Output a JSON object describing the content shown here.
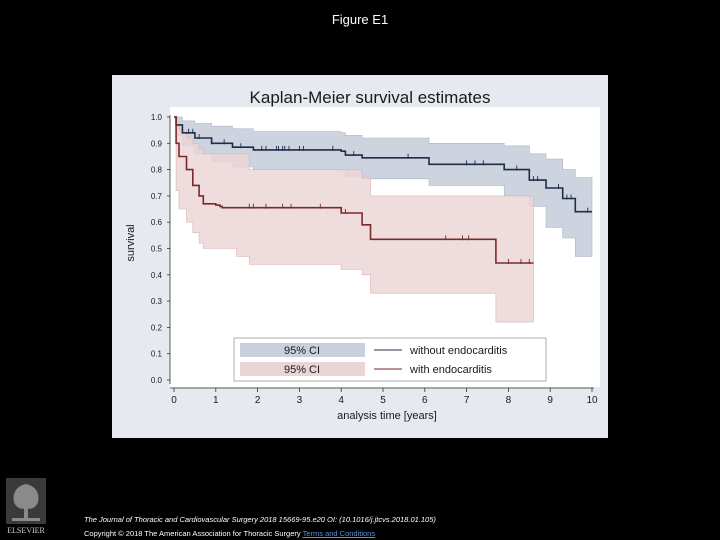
{
  "slide": {
    "title": "Figure E1"
  },
  "footer": {
    "publisher": "ELSEVIER",
    "citation_line1": "The Journal of Thoracic and Cardiovascular Surgery 2018 15669-95.e20 OI: (10.1016/j.jtcvs.2018.01.105)",
    "citation_line2_prefix": "Copyright © 2018 The American Association for Thoracic Surgery ",
    "terms_link": "Terms and Conditions"
  },
  "colors": {
    "background": "#000000",
    "panel": "#e6e9f0",
    "plot_area": "#ffffff",
    "without_line": "#1f2c4a",
    "without_ci": "#c9cfdc",
    "with_line": "#7a2a2a",
    "with_ci": "#ebd4d6"
  },
  "chart_data": {
    "type": "line",
    "title": "Kaplan-Meier survival estimates",
    "xlabel": "analysis time [years]",
    "ylabel": "survival",
    "xlim": [
      0,
      10
    ],
    "ylim": [
      0,
      1
    ],
    "x_ticks": [
      "0",
      "1",
      "2",
      "3",
      "4",
      "5",
      "6",
      "7",
      "8",
      "9",
      "10"
    ],
    "y_ticks": [
      "0.0",
      "0.1",
      "0.2",
      "0.3",
      "0.4",
      "0.5",
      "0.6",
      "0.7",
      "0.8",
      "0.9",
      "1.0"
    ],
    "grid": false,
    "legend_position": "bottom-center",
    "legend": {
      "ci_label_1": "95% CI",
      "line_label_1": "without endocarditis",
      "ci_label_2": "95% CI",
      "line_label_2": "with endocarditis"
    },
    "series": [
      {
        "name": "without endocarditis",
        "color": "#1f2c4a",
        "steps": [
          [
            0,
            1.0
          ],
          [
            0.05,
            0.97
          ],
          [
            0.2,
            0.94
          ],
          [
            0.5,
            0.92
          ],
          [
            0.9,
            0.9
          ],
          [
            1.4,
            0.885
          ],
          [
            1.9,
            0.875
          ],
          [
            4.0,
            0.87
          ],
          [
            4.1,
            0.855
          ],
          [
            4.5,
            0.845
          ],
          [
            6.1,
            0.82
          ],
          [
            7.9,
            0.8
          ],
          [
            8.5,
            0.76
          ],
          [
            8.9,
            0.73
          ],
          [
            9.3,
            0.69
          ],
          [
            9.6,
            0.64
          ],
          [
            10,
            0.64
          ]
        ],
        "ci_upper": [
          [
            0,
            1.0
          ],
          [
            0.05,
            1.0
          ],
          [
            0.2,
            0.985
          ],
          [
            0.5,
            0.975
          ],
          [
            0.9,
            0.965
          ],
          [
            1.4,
            0.955
          ],
          [
            1.9,
            0.945
          ],
          [
            4.0,
            0.94
          ],
          [
            4.1,
            0.93
          ],
          [
            4.5,
            0.92
          ],
          [
            5.0,
            0.92
          ],
          [
            6.1,
            0.9
          ],
          [
            7.9,
            0.89
          ],
          [
            8.5,
            0.86
          ],
          [
            8.9,
            0.84
          ],
          [
            9.3,
            0.8
          ],
          [
            9.6,
            0.77
          ],
          [
            10,
            0.77
          ]
        ],
        "ci_lower": [
          [
            0,
            1.0
          ],
          [
            0.05,
            0.93
          ],
          [
            0.2,
            0.89
          ],
          [
            0.5,
            0.86
          ],
          [
            0.9,
            0.83
          ],
          [
            1.4,
            0.81
          ],
          [
            1.9,
            0.8
          ],
          [
            4.0,
            0.795
          ],
          [
            4.1,
            0.775
          ],
          [
            4.5,
            0.765
          ],
          [
            6.1,
            0.74
          ],
          [
            7.9,
            0.7
          ],
          [
            8.5,
            0.66
          ],
          [
            8.9,
            0.58
          ],
          [
            9.3,
            0.54
          ],
          [
            9.6,
            0.47
          ],
          [
            10,
            0.47
          ]
        ],
        "censored": [
          0.35,
          0.45,
          0.6,
          0.9,
          1.2,
          1.6,
          2.1,
          2.2,
          2.45,
          2.5,
          2.6,
          2.65,
          2.75,
          3.0,
          3.1,
          3.8,
          4.3,
          5.6,
          7.0,
          7.2,
          7.4,
          8.2,
          8.6,
          8.7,
          9.2,
          9.4,
          9.5,
          9.9
        ]
      },
      {
        "name": "with endocarditis",
        "color": "#7a2a2a",
        "steps": [
          [
            0,
            1.0
          ],
          [
            0.05,
            0.9
          ],
          [
            0.12,
            0.85
          ],
          [
            0.3,
            0.8
          ],
          [
            0.45,
            0.74
          ],
          [
            0.6,
            0.7
          ],
          [
            0.7,
            0.67
          ],
          [
            1.0,
            0.665
          ],
          [
            1.1,
            0.66
          ],
          [
            1.15,
            0.655
          ],
          [
            1.5,
            0.655
          ],
          [
            1.7,
            0.655
          ],
          [
            4.0,
            0.635
          ],
          [
            4.5,
            0.59
          ],
          [
            4.7,
            0.535
          ],
          [
            7.7,
            0.445
          ],
          [
            8.6,
            0.445
          ]
        ],
        "ci_upper": [
          [
            0,
            1.0
          ],
          [
            0.05,
            0.98
          ],
          [
            0.12,
            0.95
          ],
          [
            0.3,
            0.92
          ],
          [
            0.45,
            0.9
          ],
          [
            0.6,
            0.88
          ],
          [
            0.7,
            0.86
          ],
          [
            1.5,
            0.86
          ],
          [
            1.8,
            0.8
          ],
          [
            4.0,
            0.8
          ],
          [
            4.5,
            0.77
          ],
          [
            4.7,
            0.7
          ],
          [
            7.7,
            0.7
          ],
          [
            8.6,
            0.7
          ]
        ],
        "ci_lower": [
          [
            0,
            1.0
          ],
          [
            0.05,
            0.72
          ],
          [
            0.12,
            0.65
          ],
          [
            0.3,
            0.6
          ],
          [
            0.45,
            0.56
          ],
          [
            0.6,
            0.52
          ],
          [
            0.7,
            0.5
          ],
          [
            1.5,
            0.47
          ],
          [
            1.8,
            0.44
          ],
          [
            4.0,
            0.42
          ],
          [
            4.5,
            0.4
          ],
          [
            4.7,
            0.33
          ],
          [
            7.7,
            0.22
          ],
          [
            8.6,
            0.22
          ]
        ],
        "censored": [
          1.8,
          1.9,
          2.2,
          2.6,
          2.8,
          3.5,
          4.1,
          6.5,
          6.9,
          7.05,
          8.0,
          8.3,
          8.5
        ]
      }
    ]
  }
}
